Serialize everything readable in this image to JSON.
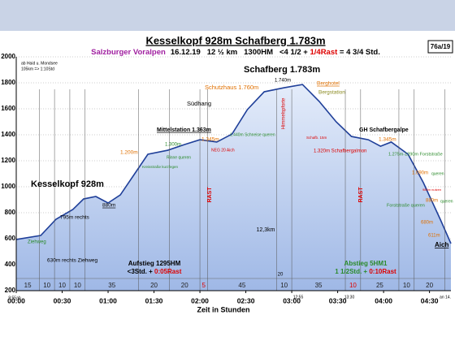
{
  "chart_data": {
    "type": "area",
    "title": "Kesselkopf 928m  Schafberg 1.783m",
    "subtitle": {
      "region": "Salzburger Voralpen",
      "facts": "16.12.19   12 ½ km   1300HM   <4 1/2 + ",
      "rest": "1/4Rast",
      "total": " = 4 3/4 Std."
    },
    "badge": "76a/19",
    "note": [
      "ab Haid u. Mondsee",
      "105km => 1:10Std"
    ],
    "x_label": "Zeit in Stunden",
    "x": [
      0,
      16,
      26,
      37,
      44,
      52,
      60,
      68,
      86,
      99,
      110,
      120,
      131,
      141,
      151,
      162,
      175,
      187,
      198,
      209,
      219,
      230,
      238,
      245,
      256,
      266,
      277,
      284
    ],
    "values": [
      594,
      625,
      750,
      825,
      906,
      925,
      875,
      937,
      1250,
      1281,
      1325,
      1362,
      1344,
      1406,
      1594,
      1731,
      1762,
      1787,
      1656,
      1500,
      1387,
      1362,
      1312,
      1344,
      1250,
      1031,
      750,
      563
    ],
    "color": "#1f3f99",
    "xlim": [
      0,
      284
    ],
    "ylim": [
      200,
      2000
    ],
    "xticks": [
      {
        "value": 0,
        "label": "00:00"
      },
      {
        "value": 30,
        "label": "00:30"
      },
      {
        "value": 60,
        "label": "01:00"
      },
      {
        "value": 90,
        "label": "01:30"
      },
      {
        "value": 120,
        "label": "02:00"
      },
      {
        "value": 150,
        "label": "02:30"
      },
      {
        "value": 180,
        "label": "03:00"
      },
      {
        "value": 210,
        "label": "03:30"
      },
      {
        "value": 240,
        "label": "04:00"
      },
      {
        "value": 270,
        "label": "04:30"
      }
    ],
    "yticks": [
      200,
      400,
      600,
      800,
      1000,
      1200,
      1400,
      1600,
      1800,
      2000
    ],
    "grid": true,
    "segments": {
      "values": [
        15,
        10,
        10,
        10,
        35,
        20,
        20,
        5,
        45,
        10,
        35,
        10,
        25,
        10,
        20
      ],
      "colors": [
        "#222",
        "#222",
        "#222",
        "#222",
        "#222",
        "#222",
        "#222",
        "#d00",
        "#222",
        "#222",
        "#222",
        "#d00",
        "#222",
        "#222",
        "#222"
      ]
    },
    "annotations": [
      "Kesselkopf 928m",
      "795m rechts",
      "Ziehweg",
      "630m rechts Ziehweg",
      "880m",
      "1.200m",
      "Kreisstraße kurzfegen",
      "1.300m",
      "Rinne queren",
      "Mittelstation 1.363m",
      "1.345m",
      "NEG 20 Aich",
      "1.440m Schneise queren",
      "Südhang",
      "Schutzhaus 1.760m",
      "Schafberg 1.783m",
      "1.740m",
      "Himmelspforte",
      "Berghotel",
      "Bergstation",
      "RAST",
      "RAST",
      "Schafb. 15m",
      "GH Schafbergalpe",
      "1.345m",
      "1.320m Schafbergalmon",
      "1.275m-1290m Forststraße",
      "1.090m",
      "queren",
      "980m nutzen",
      "880m",
      "queren",
      "Forststraße queren",
      "680m",
      "611m",
      "Aich",
      "12,3km",
      "20",
      "9:55ab",
      "12:55",
      "13:30",
      "an 14."
    ],
    "ascent": {
      "title": "Aufstieg 1295HM",
      "time": "<3Std. + ",
      "rest": "0:05Rast"
    },
    "descent": {
      "title": "Abstieg 5HM1",
      "time": "1 1/2Std. + ",
      "rest": "0:10Rast"
    }
  }
}
